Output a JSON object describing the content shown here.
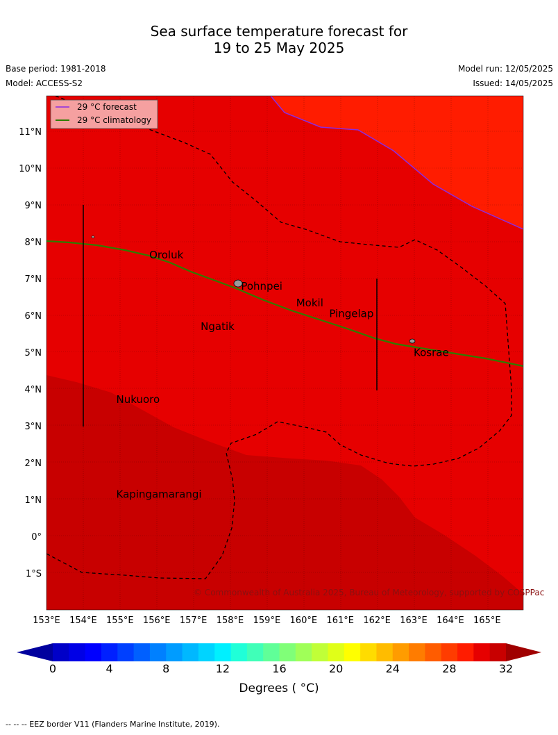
{
  "header": {
    "title_line1": "Sea surface temperature forecast for",
    "title_line2": "19 to 25 May 2025",
    "base_period": "Base period: 1981-2018",
    "model": "Model: ACCESS-S2",
    "model_run": "Model run: 12/05/2025",
    "issued": "Issued: 14/05/2025"
  },
  "map": {
    "lon_labels": [
      "153°E",
      "154°E",
      "155°E",
      "156°E",
      "157°E",
      "158°E",
      "159°E",
      "160°E",
      "161°E",
      "162°E",
      "163°E",
      "164°E",
      "165°E"
    ],
    "lat_labels": [
      "11°N",
      "10°N",
      "9°N",
      "8°N",
      "7°N",
      "6°N",
      "5°N",
      "4°N",
      "3°N",
      "2°N",
      "1°N",
      "0°",
      "1°S"
    ],
    "legend": {
      "forecast": "29 °C  forecast",
      "climatology": "29 °C  climatology",
      "forecast_color": "#8a2be2",
      "climatology_color": "#2e7d00"
    },
    "places": [
      {
        "name": "Oroluk",
        "lon": 155.8,
        "lat": 7.55
      },
      {
        "name": "Pohnpei",
        "lon": 158.3,
        "lat": 6.7
      },
      {
        "name": "Mokil",
        "lon": 159.8,
        "lat": 6.25
      },
      {
        "name": "Pingelap",
        "lon": 160.7,
        "lat": 5.95
      },
      {
        "name": "Ngatik",
        "lon": 157.2,
        "lat": 5.6
      },
      {
        "name": "Kosrae",
        "lon": 163.0,
        "lat": 4.9
      },
      {
        "name": "Nukuoro",
        "lon": 154.9,
        "lat": 3.62
      },
      {
        "name": "Kapingamarangi",
        "lon": 154.9,
        "lat": 1.05
      }
    ],
    "copyright": "© Commonwealth of Australia 2025, Bureau of Meteorology, supported by COSPPac"
  },
  "colorbar": {
    "ticks": [
      "0",
      "4",
      "8",
      "12",
      "16",
      "20",
      "24",
      "28",
      "32"
    ],
    "label": "Degrees ( °C)",
    "colors": [
      "#00009e",
      "#0000c8",
      "#0000e6",
      "#0000ff",
      "#0020ff",
      "#0040ff",
      "#0060ff",
      "#0080ff",
      "#009cff",
      "#00b8ff",
      "#00d4ff",
      "#00f0ff",
      "#20ffd8",
      "#40ffb8",
      "#60ff98",
      "#80ff78",
      "#a0ff58",
      "#c0ff38",
      "#e0ff18",
      "#ffff00",
      "#ffdc00",
      "#ffbc00",
      "#ff9c00",
      "#ff7c00",
      "#ff5c00",
      "#ff3c00",
      "#ff1c00",
      "#e60000",
      "#c80000",
      "#a00000"
    ]
  },
  "footnote": "--  --  -- EEZ border V11 (Flanders Marine Institute, 2019)."
}
